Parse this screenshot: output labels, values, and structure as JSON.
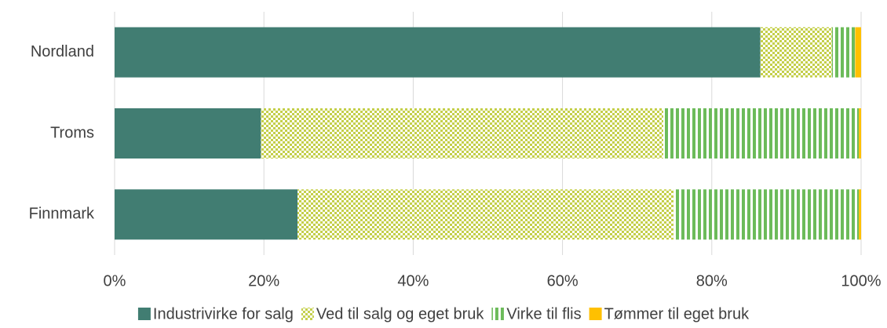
{
  "chart_data": {
    "type": "stacked-bar-horizontal",
    "categories": [
      "Nordland",
      "Troms",
      "Finnmark"
    ],
    "series": [
      {
        "name": "Industrivirke for salg",
        "color": "#417d72",
        "pattern": "solid",
        "values": [
          86.5,
          19.6,
          24.5
        ]
      },
      {
        "name": "Ved til salg og eget bruk",
        "color": "#c4cf4a",
        "pattern": "checker",
        "values": [
          9.6,
          53.9,
          50.4
        ]
      },
      {
        "name": "Virke til flis",
        "color": "#6cbb5a",
        "pattern": "vertical-stripes",
        "values": [
          3.1,
          26.2,
          24.8
        ]
      },
      {
        "name": "Tømmer til eget bruk",
        "color": "#ffc000",
        "pattern": "solid",
        "values": [
          0.8,
          0.3,
          0.3
        ]
      }
    ],
    "xlim": [
      0,
      100
    ],
    "xticks": [
      {
        "value": 0,
        "label": "0%"
      },
      {
        "value": 20,
        "label": "20%"
      },
      {
        "value": 40,
        "label": "40%"
      },
      {
        "value": 60,
        "label": "60%"
      },
      {
        "value": 80,
        "label": "80%"
      },
      {
        "value": 100,
        "label": "100%"
      }
    ],
    "grid": true,
    "legend": "bottom"
  }
}
